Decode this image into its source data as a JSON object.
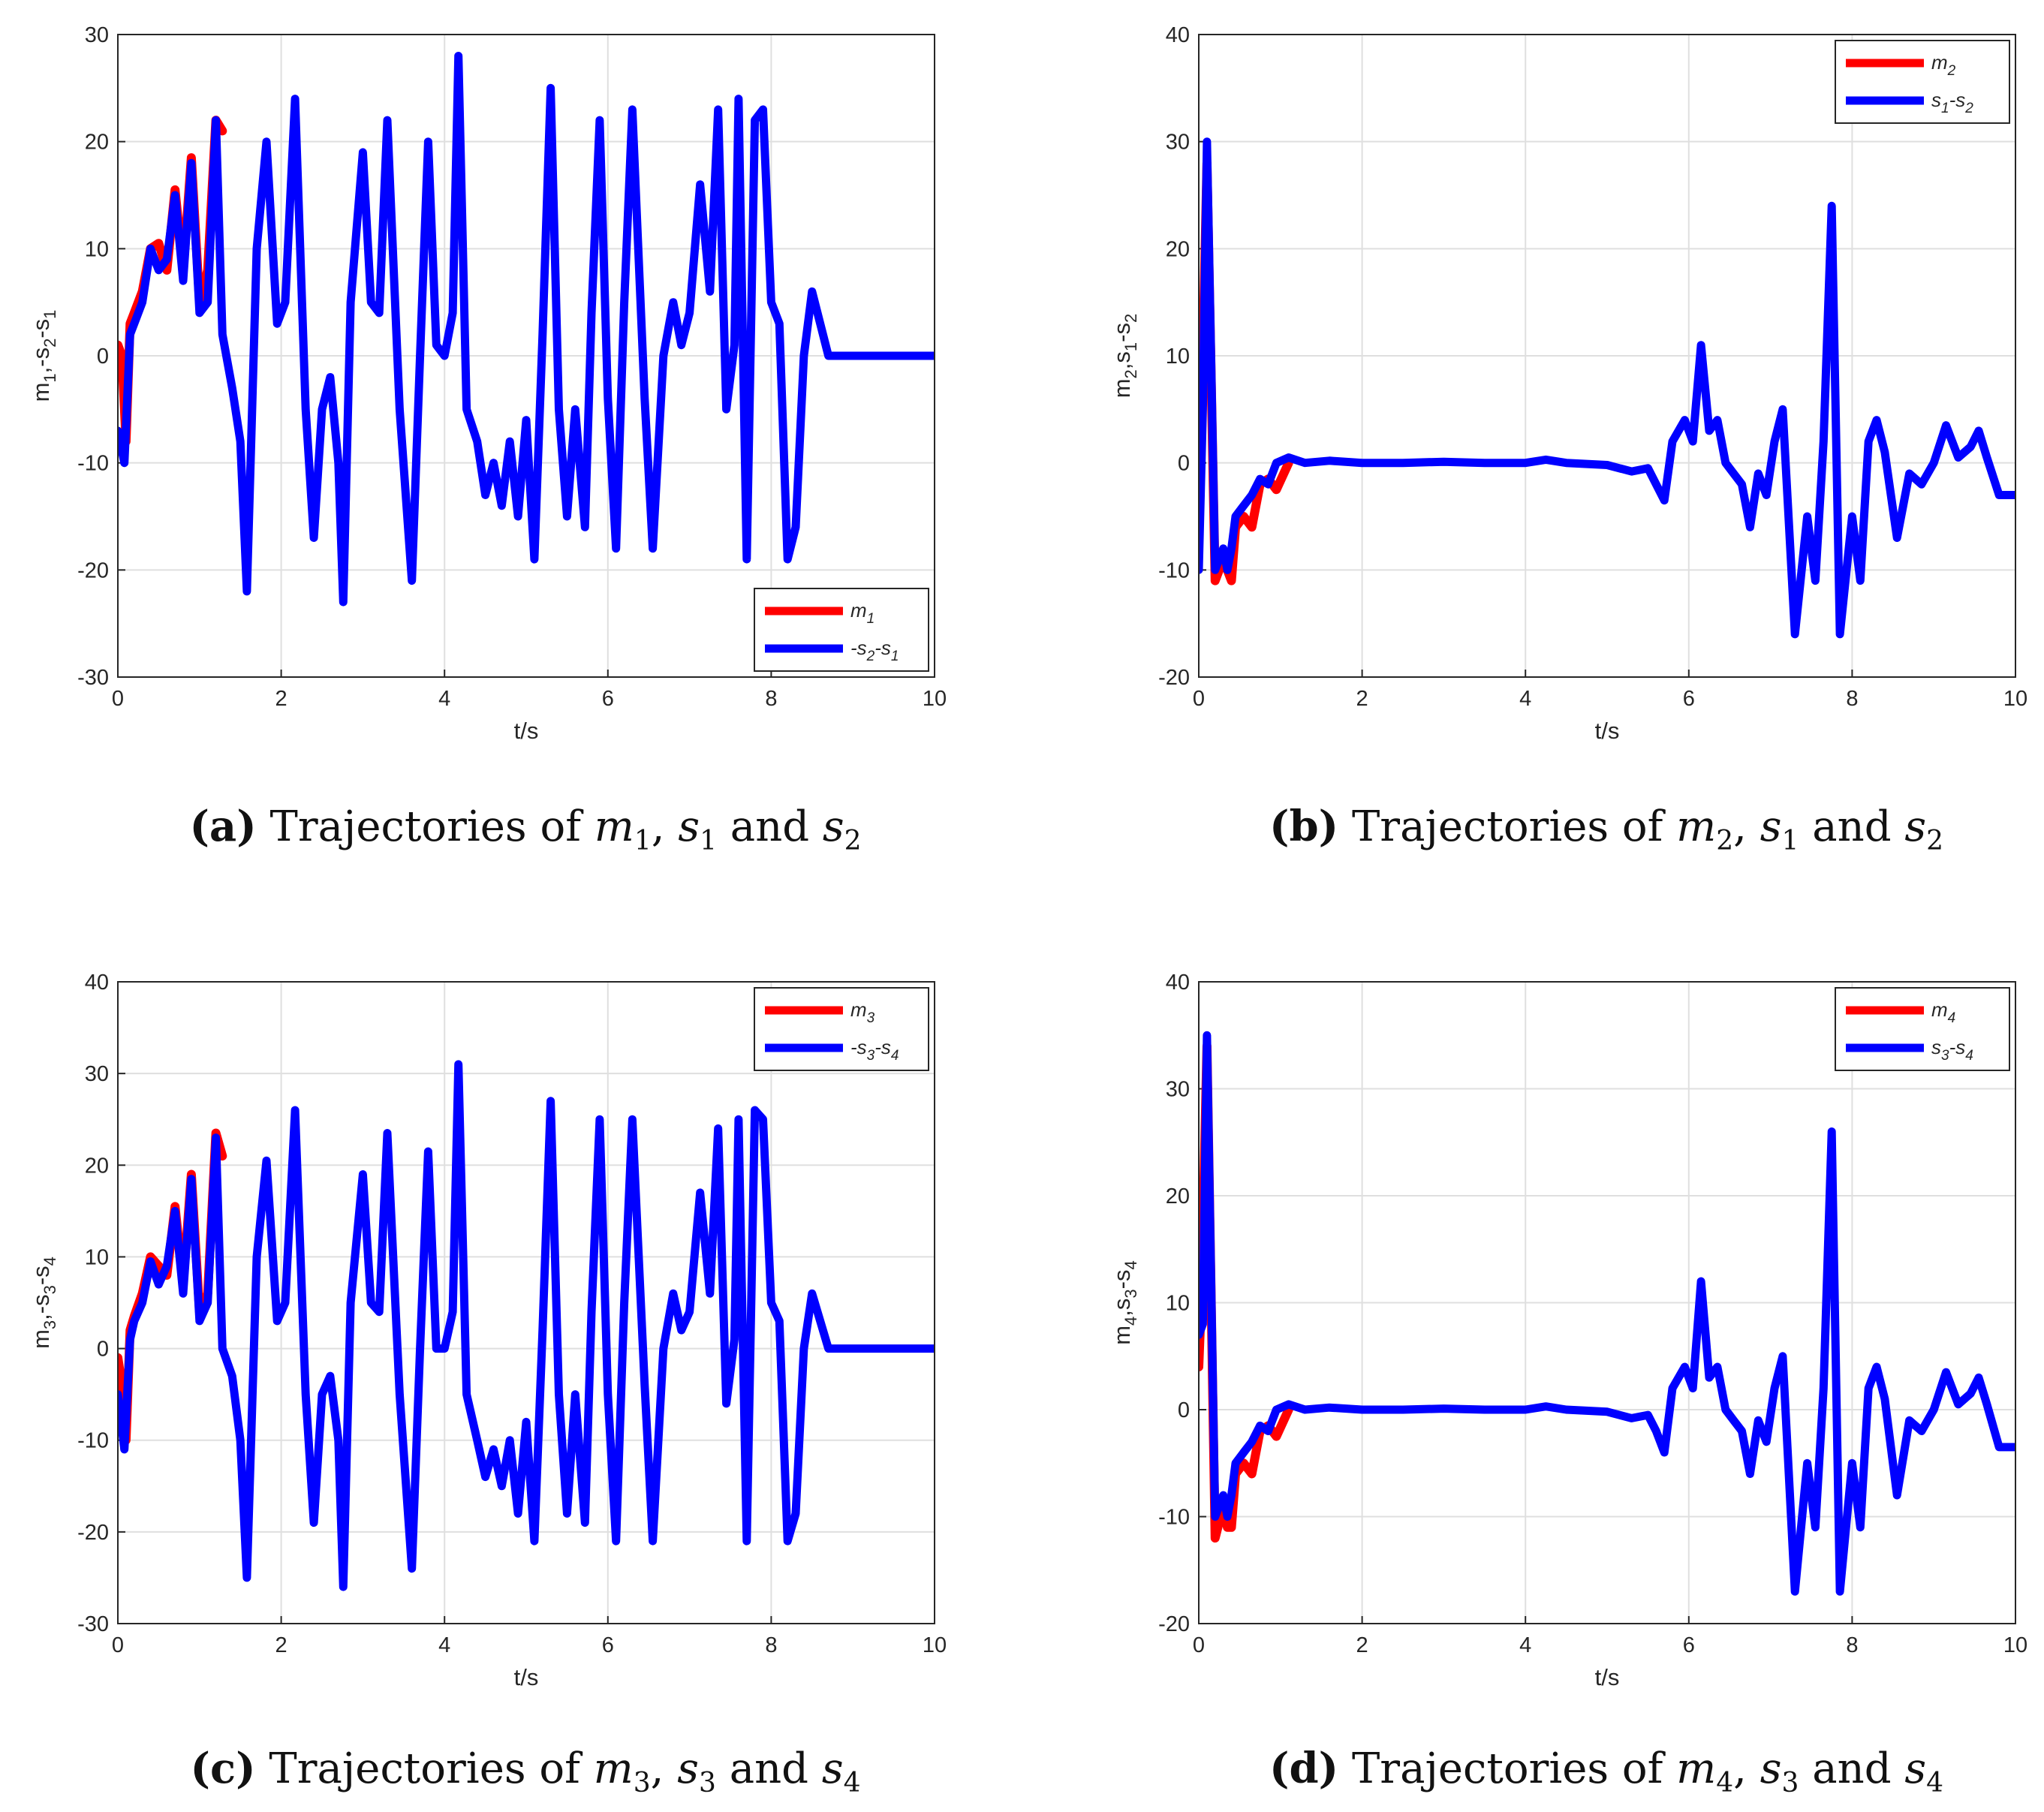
{
  "colors": {
    "m_series": "#ff0000",
    "s_series": "#0000ff",
    "grid": "#dfdfdf",
    "axis": "#262626"
  },
  "chart_data": [
    {
      "type": "line",
      "panel": "a",
      "caption": {
        "letter": "(a)",
        "prefix": "Trajectories of",
        "v1": "m",
        "v1sub": "1",
        "v2": "s",
        "v2sub": "1",
        "conj": "and",
        "v3": "s",
        "v3sub": "2"
      },
      "xlabel": "t/s",
      "ylabel": {
        "p1": "m",
        "s1": "1",
        "p2": ",-s",
        "s2": "2",
        "p3": "-s",
        "s3": "1"
      },
      "xlim": [
        0,
        10
      ],
      "ylim": [
        -30,
        30
      ],
      "xticks": [
        "0",
        "2",
        "4",
        "6",
        "8",
        "10"
      ],
      "yticks": [
        "-30",
        "-20",
        "-10",
        "0",
        "10",
        "20",
        "30"
      ],
      "legend_position": "bottom-right",
      "series": [
        {
          "name": "m",
          "name_sub": "1",
          "color": "#ff0000",
          "x": [
            0,
            0.05,
            0.1,
            0.15,
            0.2,
            0.3,
            0.4,
            0.5,
            0.6,
            0.7,
            0.8,
            0.9,
            1.0,
            1.1,
            1.2,
            1.28
          ],
          "y": [
            1,
            0,
            -8,
            3,
            4,
            6,
            10,
            10.5,
            8,
            15.5,
            8,
            18.5,
            5,
            8,
            22,
            21
          ]
        },
        {
          "name": "-s",
          "name_sub": "2",
          "name_rest": "-s",
          "name_sub2": "1",
          "color": "#0000ff",
          "x": [
            0,
            0.08,
            0.15,
            0.2,
            0.3,
            0.4,
            0.5,
            0.6,
            0.7,
            0.8,
            0.9,
            1.0,
            1.1,
            1.2,
            1.28,
            1.4,
            1.5,
            1.58,
            1.7,
            1.82,
            1.95,
            2.05,
            2.17,
            2.3,
            2.4,
            2.5,
            2.6,
            2.7,
            2.76,
            2.85,
            3.0,
            3.1,
            3.2,
            3.3,
            3.45,
            3.6,
            3.7,
            3.8,
            3.9,
            4.0,
            4.1,
            4.17,
            4.27,
            4.4,
            4.5,
            4.6,
            4.7,
            4.8,
            4.9,
            5.0,
            5.1,
            5.2,
            5.3,
            5.4,
            5.5,
            5.6,
            5.72,
            5.8,
            5.9,
            6.0,
            6.1,
            6.2,
            6.3,
            6.45,
            6.55,
            6.68,
            6.8,
            6.9,
            7.0,
            7.13,
            7.25,
            7.35,
            7.45,
            7.55,
            7.6,
            7.7,
            7.8,
            7.9,
            8.0,
            8.1,
            8.2,
            8.3,
            8.4,
            8.5,
            8.6,
            8.7,
            8.85,
            9.0,
            9.1,
            9.2,
            9.3,
            9.43,
            9.55,
            9.67,
            9.8,
            9.9,
            10.0
          ],
          "y": [
            -7,
            -10,
            2,
            3,
            5,
            10,
            8,
            9,
            15,
            7,
            18,
            4,
            5,
            22,
            2,
            -3,
            -8,
            -22,
            10,
            20,
            3,
            5,
            24,
            -5,
            -17,
            -5,
            -2,
            -10,
            -23,
            5,
            19,
            5,
            4,
            22,
            -5,
            -21,
            0,
            20,
            1,
            0,
            4,
            28,
            -5,
            -8,
            -13,
            -10,
            -14,
            -8,
            -15,
            -6,
            -19,
            2,
            25,
            -5,
            -15,
            -5,
            -16,
            4,
            22,
            -4,
            -18,
            5,
            23,
            -4,
            -18,
            0,
            5,
            1,
            4,
            16,
            6,
            23,
            -5,
            1,
            24,
            -19,
            22,
            23,
            5,
            3,
            -19,
            -16,
            0,
            6,
            3,
            0,
            0,
            0,
            0,
            0,
            0,
            0,
            0,
            0,
            0,
            0,
            0
          ]
        }
      ]
    },
    {
      "type": "line",
      "panel": "b",
      "caption": {
        "letter": "(b)",
        "prefix": "Trajectories of",
        "v1": "m",
        "v1sub": "2",
        "v2": "s",
        "v2sub": "1",
        "conj": "and",
        "v3": "s",
        "v3sub": "2"
      },
      "xlabel": "t/s",
      "ylabel": {
        "p1": "m",
        "s1": "2",
        "p2": ",s",
        "s2": "1",
        "p3": "-s",
        "s3": "2"
      },
      "xlim": [
        0,
        10
      ],
      "ylim": [
        -20,
        40
      ],
      "xticks": [
        "0",
        "2",
        "4",
        "6",
        "8",
        "10"
      ],
      "yticks": [
        "-20",
        "-10",
        "0",
        "10",
        "20",
        "30",
        "40"
      ],
      "legend_position": "top-right",
      "series": [
        {
          "name": "m",
          "name_sub": "2",
          "color": "#ff0000",
          "x": [
            0,
            0.05,
            0.1,
            0.2,
            0.3,
            0.4,
            0.45,
            0.55,
            0.65,
            0.75,
            0.85,
            0.95,
            1.1
          ],
          "y": [
            -2,
            10,
            28,
            -11,
            -9,
            -11,
            -6,
            -5,
            -6,
            -2,
            -1.5,
            -2.5,
            0
          ]
        },
        {
          "name": "s",
          "name_sub": "1",
          "name_rest": "-s",
          "name_sub2": "2",
          "color": "#0000ff",
          "x": [
            0,
            0.05,
            0.1,
            0.2,
            0.3,
            0.35,
            0.4,
            0.45,
            0.55,
            0.65,
            0.75,
            0.85,
            0.95,
            1.1,
            1.3,
            1.6,
            2.0,
            2.5,
            3.0,
            3.5,
            4.0,
            4.25,
            4.5,
            5.0,
            5.3,
            5.5,
            5.6,
            5.7,
            5.8,
            5.95,
            6.05,
            6.15,
            6.25,
            6.35,
            6.45,
            6.55,
            6.65,
            6.75,
            6.85,
            6.95,
            7.05,
            7.15,
            7.3,
            7.45,
            7.55,
            7.65,
            7.75,
            7.85,
            8.0,
            8.1,
            8.2,
            8.3,
            8.4,
            8.55,
            8.7,
            8.85,
            9.0,
            9.15,
            9.3,
            9.45,
            9.55,
            9.65,
            9.8,
            10.0
          ],
          "y": [
            -10,
            5,
            30,
            -10,
            -8,
            -10,
            -8,
            -5,
            -4,
            -3,
            -1.5,
            -2,
            0,
            0.5,
            0,
            0.2,
            0,
            0,
            0.1,
            0,
            0,
            0.3,
            0,
            -0.2,
            -0.8,
            -0.5,
            -2,
            -3.5,
            2,
            4,
            2,
            11,
            3,
            4,
            0,
            -1,
            -2,
            -6,
            -1,
            -3,
            2,
            5,
            -16,
            -5,
            -11,
            2,
            24,
            -16,
            -5,
            -11,
            2,
            4,
            1,
            -7,
            -1,
            -2,
            0,
            3.5,
            0.5,
            1.5,
            3,
            0.5,
            -3,
            -3
          ]
        }
      ]
    },
    {
      "type": "line",
      "panel": "c",
      "caption": {
        "letter": "(c)",
        "prefix": "Trajectories of",
        "v1": "m",
        "v1sub": "3",
        "v2": "s",
        "v2sub": "3",
        "conj": "and",
        "v3": "s",
        "v3sub": "4"
      },
      "xlabel": "t/s",
      "ylabel": {
        "p1": "m",
        "s1": "3",
        "p2": ",-s",
        "s2": "3",
        "p3": "-s",
        "s3": "4"
      },
      "xlim": [
        0,
        10
      ],
      "ylim": [
        -30,
        40
      ],
      "xticks": [
        "0",
        "2",
        "4",
        "6",
        "8",
        "10"
      ],
      "yticks": [
        "-30",
        "-20",
        "-10",
        "0",
        "10",
        "20",
        "30",
        "40"
      ],
      "legend_position": "top-right",
      "series": [
        {
          "name": "m",
          "name_sub": "3",
          "color": "#ff0000",
          "x": [
            0,
            0.05,
            0.1,
            0.15,
            0.2,
            0.3,
            0.4,
            0.5,
            0.6,
            0.7,
            0.8,
            0.9,
            1.0,
            1.1,
            1.2,
            1.28
          ],
          "y": [
            -1,
            -4,
            -10,
            2,
            3.5,
            6,
            10,
            9,
            8,
            15.5,
            7,
            19,
            4,
            6,
            23.5,
            21
          ]
        },
        {
          "name": "-s",
          "name_sub": "3",
          "name_rest": "-s",
          "name_sub2": "4",
          "color": "#0000ff",
          "x": [
            0,
            0.08,
            0.15,
            0.2,
            0.3,
            0.4,
            0.5,
            0.6,
            0.7,
            0.8,
            0.9,
            1.0,
            1.1,
            1.2,
            1.28,
            1.4,
            1.5,
            1.58,
            1.7,
            1.82,
            1.95,
            2.05,
            2.17,
            2.3,
            2.4,
            2.5,
            2.6,
            2.7,
            2.76,
            2.85,
            3.0,
            3.1,
            3.2,
            3.3,
            3.45,
            3.6,
            3.7,
            3.8,
            3.9,
            4.0,
            4.1,
            4.17,
            4.27,
            4.4,
            4.5,
            4.6,
            4.7,
            4.8,
            4.9,
            5.0,
            5.1,
            5.2,
            5.3,
            5.4,
            5.5,
            5.6,
            5.72,
            5.8,
            5.9,
            6.0,
            6.1,
            6.2,
            6.3,
            6.45,
            6.55,
            6.68,
            6.8,
            6.9,
            7.0,
            7.13,
            7.25,
            7.35,
            7.45,
            7.55,
            7.6,
            7.7,
            7.8,
            7.9,
            8.0,
            8.1,
            8.2,
            8.3,
            8.4,
            8.5,
            8.6,
            8.7,
            8.85,
            9.0,
            9.1,
            9.2,
            9.3,
            9.43,
            9.55,
            9.67,
            9.8,
            9.9,
            10.0
          ],
          "y": [
            -5,
            -11,
            1,
            3,
            5,
            9.5,
            7,
            9,
            15,
            6,
            18.5,
            3,
            5,
            23,
            0,
            -3,
            -10,
            -25,
            10,
            20.5,
            3,
            5,
            26,
            -5,
            -19,
            -5,
            -3,
            -10,
            -26,
            5,
            19,
            5,
            4,
            23.5,
            -5,
            -24,
            0,
            21.5,
            0,
            0,
            4,
            31,
            -5,
            -10,
            -14,
            -11,
            -15,
            -10,
            -18,
            -8,
            -21,
            2,
            27,
            -5,
            -18,
            -5,
            -19,
            4,
            25,
            -5,
            -21,
            5,
            25,
            -4,
            -21,
            0,
            6,
            2,
            4,
            17,
            6,
            24,
            -6,
            1,
            25,
            -21,
            26,
            25,
            5,
            3,
            -21,
            -18,
            0,
            6,
            3,
            0,
            0,
            0,
            0,
            0,
            0,
            0,
            0,
            0,
            0,
            0,
            0
          ]
        }
      ]
    },
    {
      "type": "line",
      "panel": "d",
      "caption": {
        "letter": "(d)",
        "prefix": "Trajectories of",
        "v1": "m",
        "v1sub": "4",
        "v2": "s",
        "v2sub": "3",
        "conj": "and",
        "v3": "s",
        "v3sub": "4"
      },
      "xlabel": "t/s",
      "ylabel": {
        "p1": "m",
        "s1": "4",
        "p2": ",s",
        "s2": "3",
        "p3": "-s",
        "s3": "4"
      },
      "xlim": [
        0,
        10
      ],
      "ylim": [
        -20,
        40
      ],
      "xticks": [
        "0",
        "2",
        "4",
        "6",
        "8",
        "10"
      ],
      "yticks": [
        "-20",
        "-10",
        "0",
        "10",
        "20",
        "30",
        "40"
      ],
      "legend_position": "top-right",
      "series": [
        {
          "name": "m",
          "name_sub": "4",
          "color": "#ff0000",
          "x": [
            0,
            0.03,
            0.06,
            0.1,
            0.2,
            0.3,
            0.35,
            0.4,
            0.45,
            0.55,
            0.65,
            0.75,
            0.85,
            0.95,
            1.1
          ],
          "y": [
            4,
            10,
            20,
            34,
            -12,
            -9,
            -11,
            -11,
            -6,
            -5,
            -6,
            -2,
            -1.5,
            -2.5,
            0
          ]
        },
        {
          "name": "s",
          "name_sub": "3",
          "name_rest": "-s",
          "name_sub2": "4",
          "color": "#0000ff",
          "x": [
            0,
            0.05,
            0.1,
            0.2,
            0.3,
            0.35,
            0.4,
            0.45,
            0.55,
            0.65,
            0.75,
            0.85,
            0.95,
            1.1,
            1.3,
            1.6,
            2.0,
            2.5,
            3.0,
            3.5,
            4.0,
            4.25,
            4.5,
            5.0,
            5.3,
            5.5,
            5.6,
            5.7,
            5.8,
            5.95,
            6.05,
            6.15,
            6.25,
            6.35,
            6.45,
            6.55,
            6.65,
            6.75,
            6.85,
            6.95,
            7.05,
            7.15,
            7.3,
            7.45,
            7.55,
            7.65,
            7.75,
            7.85,
            8.0,
            8.1,
            8.2,
            8.3,
            8.4,
            8.55,
            8.7,
            8.85,
            9.0,
            9.15,
            9.3,
            9.45,
            9.55,
            9.65,
            9.8,
            10.0
          ],
          "y": [
            7,
            8,
            35,
            -10,
            -8,
            -10,
            -8,
            -5,
            -4,
            -3,
            -1.5,
            -2,
            0,
            0.5,
            0,
            0.2,
            0,
            0,
            0.1,
            0,
            0,
            0.3,
            0,
            -0.2,
            -0.8,
            -0.5,
            -2,
            -4,
            2,
            4,
            2,
            12,
            3,
            4,
            0,
            -1,
            -2,
            -6,
            -1,
            -3,
            2,
            5,
            -17,
            -5,
            -11,
            2,
            26,
            -17,
            -5,
            -11,
            2,
            4,
            1,
            -8,
            -1,
            -2,
            0,
            3.5,
            0.5,
            1.5,
            3,
            0.5,
            -3.5,
            -3.5
          ]
        }
      ]
    }
  ]
}
